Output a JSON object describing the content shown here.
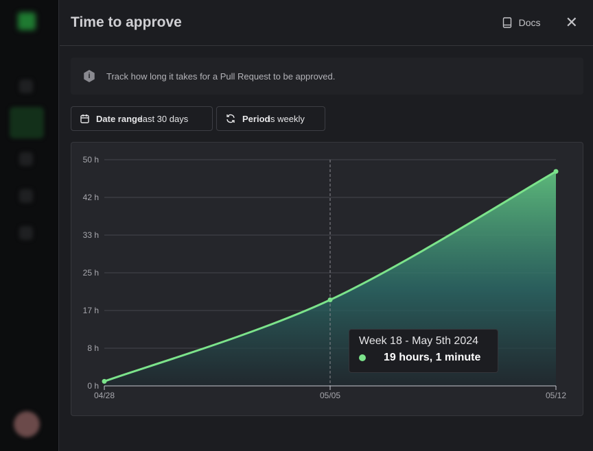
{
  "header": {
    "title": "Time to approve",
    "docs_label": "Docs"
  },
  "info": {
    "text": "Track how long it takes for a Pull Request to be approved."
  },
  "filters": [
    {
      "key": "Date range",
      "value": "last 30 days",
      "icon": "calendar-icon"
    },
    {
      "key": "Period",
      "value": "is weekly",
      "icon": "refresh-icon"
    }
  ],
  "tooltip": {
    "title": "Week 18 - May 5th 2024",
    "value": "19 hours, 1 minute"
  },
  "colors": {
    "line": "#7ce38b",
    "area_top": "#5fbf7e",
    "area_bottom": "#1f2a30"
  },
  "chart_data": {
    "type": "area",
    "categories": [
      "04/28",
      "05/05",
      "05/12"
    ],
    "values": [
      1,
      19.02,
      47.4
    ],
    "unit": "h",
    "yticks": [
      "0 h",
      "8 h",
      "17 h",
      "25 h",
      "33 h",
      "42 h",
      "50 h"
    ],
    "ylim": [
      0,
      50
    ],
    "grid": true,
    "highlighted": "05/05"
  }
}
